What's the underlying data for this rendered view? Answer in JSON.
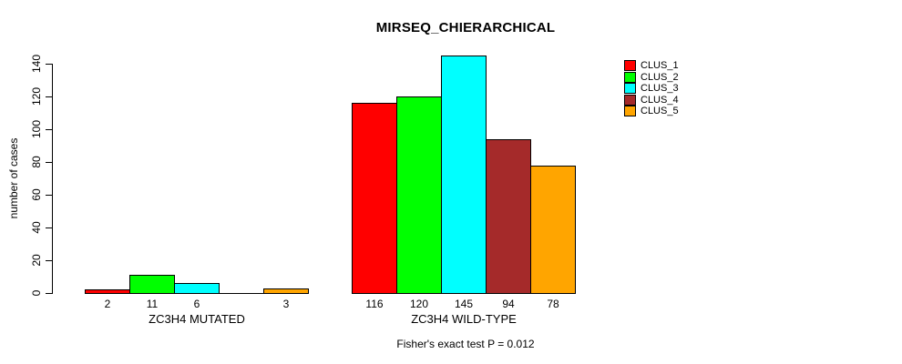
{
  "title": "MIRSEQ_CHIERARCHICAL",
  "footer": "Fisher's exact test P = 0.012",
  "chart_data": {
    "type": "bar",
    "title": "MIRSEQ_CHIERARCHICAL",
    "subtitle": "Fisher's exact test P = 0.012",
    "xlabel": "",
    "ylabel": "number of cases",
    "ylim": [
      0,
      145
    ],
    "yticks": [
      0,
      20,
      40,
      60,
      80,
      100,
      120,
      140
    ],
    "grid": false,
    "legend_position": "right-inside",
    "categories": [
      "ZC3H4 MUTATED",
      "ZC3H4 WILD-TYPE"
    ],
    "series": [
      {
        "name": "CLUS_1",
        "color": "#FF0000",
        "values": [
          2,
          116
        ]
      },
      {
        "name": "CLUS_2",
        "color": "#00FF00",
        "values": [
          11,
          120
        ]
      },
      {
        "name": "CLUS_3",
        "color": "#00FFFF",
        "values": [
          6,
          145
        ]
      },
      {
        "name": "CLUS_4",
        "color": "#A52A2A",
        "values": [
          0,
          94
        ]
      },
      {
        "name": "CLUS_5",
        "color": "#FFA500",
        "values": [
          3,
          78
        ]
      }
    ],
    "groups": [
      {
        "label": "ZC3H4 MUTATED",
        "values": [
          2,
          11,
          6,
          0,
          3
        ],
        "bar_labels": [
          "2",
          "11",
          "6",
          "",
          "3"
        ]
      },
      {
        "label": "ZC3H4 WILD-TYPE",
        "values": [
          116,
          120,
          145,
          94,
          78
        ],
        "bar_labels": [
          "116",
          "120",
          "145",
          "94",
          "78"
        ]
      }
    ],
    "legend": [
      {
        "label": "CLUS_1",
        "color": "#FF0000"
      },
      {
        "label": "CLUS_2",
        "color": "#00FF00"
      },
      {
        "label": "CLUS_3",
        "color": "#00FFFF"
      },
      {
        "label": "CLUS_4",
        "color": "#A52A2A"
      },
      {
        "label": "CLUS_5",
        "color": "#FFA500"
      }
    ]
  }
}
